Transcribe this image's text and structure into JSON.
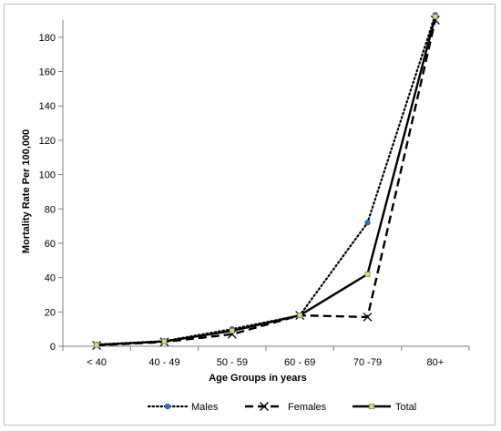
{
  "chart_data": {
    "type": "line",
    "categories": [
      "< 40",
      "40 - 49",
      "50 - 59",
      "60 - 69",
      "70 -79",
      "80+"
    ],
    "series": [
      {
        "name": "Males",
        "values": [
          1,
          3,
          10,
          18,
          72,
          193
        ],
        "style": "dotted",
        "marker": "circle",
        "marker_color": "#2e75b6"
      },
      {
        "name": "Females",
        "values": [
          0.5,
          2.5,
          7,
          18,
          17,
          190
        ],
        "style": "dashed",
        "marker": "x",
        "marker_color": "#000000"
      },
      {
        "name": "Total",
        "values": [
          0.8,
          2.8,
          9,
          18,
          42,
          192
        ],
        "style": "solid",
        "marker": "square",
        "marker_color": "#d8d88a"
      }
    ],
    "xlabel": "Age Groups in years",
    "ylabel": "Mortality Rate Per 100,000",
    "ylim": [
      0,
      190
    ],
    "yticks": [
      0,
      20,
      40,
      60,
      80,
      100,
      120,
      140,
      160,
      180
    ],
    "grid": false,
    "legend_position": "bottom"
  }
}
